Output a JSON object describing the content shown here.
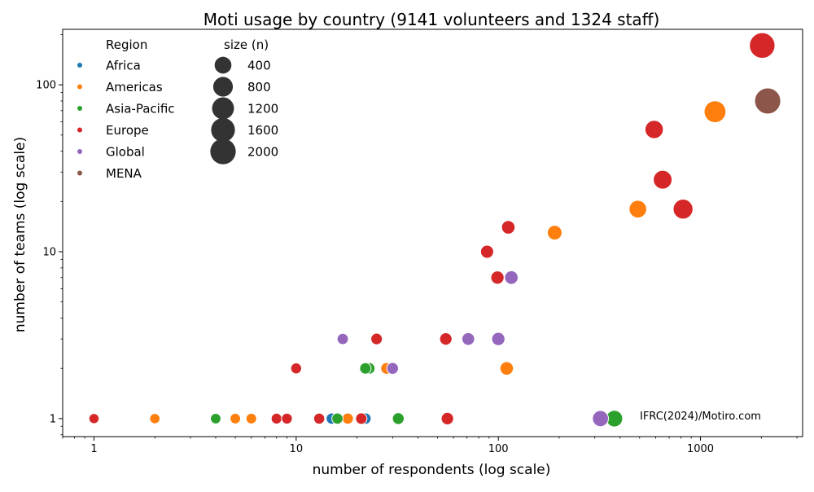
{
  "chart_data": {
    "type": "scatter",
    "title": "Moti usage by country (9141 volunteers and 1324 staff)",
    "xlabel": "number of respondents (log scale)",
    "ylabel": "number of teams (log scale)",
    "x_scale": "log",
    "y_scale": "log",
    "xlim": [
      0.7,
      3200
    ],
    "ylim": [
      0.78,
      215
    ],
    "x_ticks": [
      {
        "value": 1,
        "label": "1"
      },
      {
        "value": 10,
        "label": "10"
      },
      {
        "value": 100,
        "label": "100"
      },
      {
        "value": 1000,
        "label": "1000"
      }
    ],
    "y_ticks": [
      {
        "value": 1,
        "label": "1"
      },
      {
        "value": 10,
        "label": "10"
      },
      {
        "value": 100,
        "label": "100"
      }
    ],
    "grid": false,
    "legend_position": "top-left",
    "annotation": "IFRC(2024)/Motiro.com",
    "legend_hue_title": "Region",
    "legend_size_title": "size (n)",
    "size_legend": [
      400,
      800,
      1200,
      1600,
      2000
    ],
    "series": [
      {
        "name": "Africa",
        "color": "#1f77b4",
        "points": [
          {
            "x": 15,
            "y": 1,
            "n": 15
          },
          {
            "x": 22,
            "y": 1,
            "n": 22
          }
        ]
      },
      {
        "name": "Americas",
        "color": "#ff7f0e",
        "points": [
          {
            "x": 2,
            "y": 1,
            "n": 2
          },
          {
            "x": 5,
            "y": 1,
            "n": 5
          },
          {
            "x": 6,
            "y": 1,
            "n": 6
          },
          {
            "x": 18,
            "y": 1,
            "n": 18
          },
          {
            "x": 28,
            "y": 2,
            "n": 28
          },
          {
            "x": 110,
            "y": 2,
            "n": 110
          },
          {
            "x": 190,
            "y": 13,
            "n": 190
          },
          {
            "x": 490,
            "y": 18,
            "n": 490
          },
          {
            "x": 1180,
            "y": 69,
            "n": 1180
          }
        ]
      },
      {
        "name": "Asia-Pacific",
        "color": "#2ca02c",
        "points": [
          {
            "x": 4,
            "y": 1,
            "n": 4
          },
          {
            "x": 16,
            "y": 1,
            "n": 16
          },
          {
            "x": 23,
            "y": 2,
            "n": 23
          },
          {
            "x": 22,
            "y": 2,
            "n": 22
          },
          {
            "x": 32,
            "y": 1,
            "n": 32
          },
          {
            "x": 375,
            "y": 1,
            "n": 375
          }
        ]
      },
      {
        "name": "Europe",
        "color": "#d62728",
        "points": [
          {
            "x": 1,
            "y": 1,
            "n": 1
          },
          {
            "x": 8,
            "y": 1,
            "n": 8
          },
          {
            "x": 9,
            "y": 1,
            "n": 9
          },
          {
            "x": 10,
            "y": 2,
            "n": 10
          },
          {
            "x": 13,
            "y": 1,
            "n": 13
          },
          {
            "x": 21,
            "y": 1,
            "n": 21
          },
          {
            "x": 25,
            "y": 3,
            "n": 25
          },
          {
            "x": 55,
            "y": 3,
            "n": 55
          },
          {
            "x": 56,
            "y": 1,
            "n": 56
          },
          {
            "x": 88,
            "y": 10,
            "n": 88
          },
          {
            "x": 99,
            "y": 7,
            "n": 99
          },
          {
            "x": 112,
            "y": 14,
            "n": 112
          },
          {
            "x": 590,
            "y": 54,
            "n": 590
          },
          {
            "x": 650,
            "y": 27,
            "n": 650
          },
          {
            "x": 820,
            "y": 18,
            "n": 820
          },
          {
            "x": 2020,
            "y": 172,
            "n": 2020
          }
        ]
      },
      {
        "name": "Global",
        "color": "#9467bd",
        "points": [
          {
            "x": 17,
            "y": 3,
            "n": 17
          },
          {
            "x": 30,
            "y": 2,
            "n": 30
          },
          {
            "x": 71,
            "y": 3,
            "n": 71
          },
          {
            "x": 100,
            "y": 3,
            "n": 100
          },
          {
            "x": 116,
            "y": 7,
            "n": 116
          },
          {
            "x": 320,
            "y": 1,
            "n": 320
          }
        ]
      },
      {
        "name": "MENA",
        "color": "#8c564b",
        "points": [
          {
            "x": 2150,
            "y": 80,
            "n": 2150
          }
        ]
      }
    ]
  }
}
